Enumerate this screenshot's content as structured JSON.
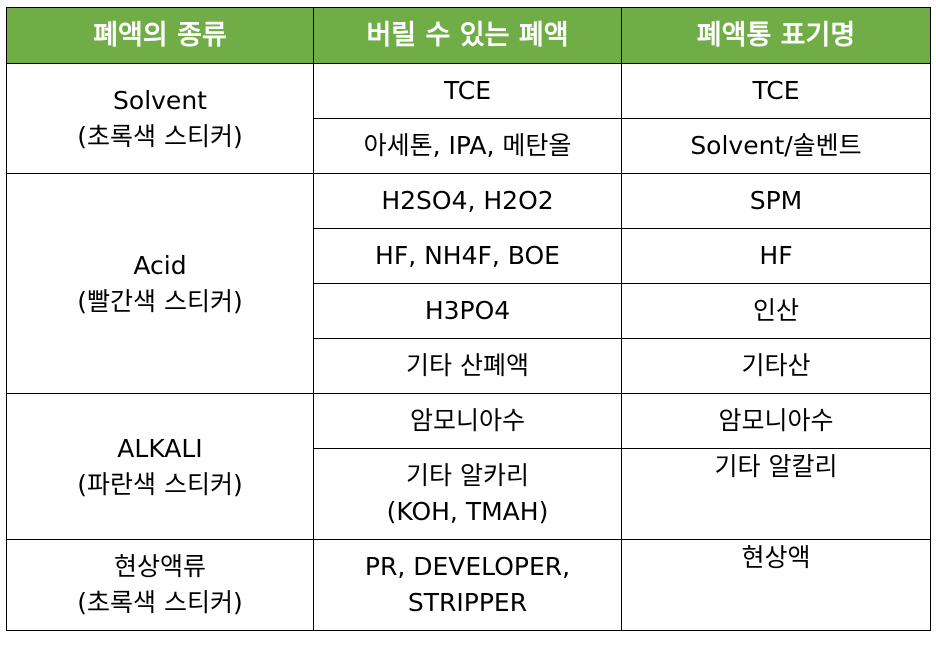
{
  "headers": {
    "type": "폐액의 종류",
    "disposable": "버릴 수 있는 폐액",
    "label": "폐액통 표기명"
  },
  "groups": [
    {
      "name": "Solvent",
      "sticker": "(초록색 스티커)",
      "rows": [
        {
          "disposable": "TCE",
          "label": "TCE"
        },
        {
          "disposable": "아세톤, IPA, 메탄올",
          "label": "Solvent/솔벤트"
        }
      ]
    },
    {
      "name": "Acid",
      "sticker": "(빨간색 스티커)",
      "rows": [
        {
          "disposable": "H2SO4, H2O2",
          "label": "SPM"
        },
        {
          "disposable": "HF, NH4F, BOE",
          "label": "HF"
        },
        {
          "disposable": "H3PO4",
          "label": "인산"
        },
        {
          "disposable": "기타 산폐액",
          "label": "기타산"
        }
      ]
    },
    {
      "name": "ALKALI",
      "sticker": "(파란색 스티커)",
      "rows": [
        {
          "disposable": "암모니아수",
          "label": "암모니아수"
        },
        {
          "disposable": "기타 알카리",
          "disposable2": "(KOH, TMAH)",
          "label": "기타 알칼리"
        }
      ]
    },
    {
      "name": "현상액류",
      "sticker": "(초록색 스티커)",
      "rows": [
        {
          "disposable": "PR, DEVELOPER,",
          "disposable2": "STRIPPER",
          "label": "현상액"
        }
      ]
    }
  ],
  "colors": {
    "header_bg": "#70ad47",
    "header_text": "#ffffff",
    "border": "#000000"
  }
}
